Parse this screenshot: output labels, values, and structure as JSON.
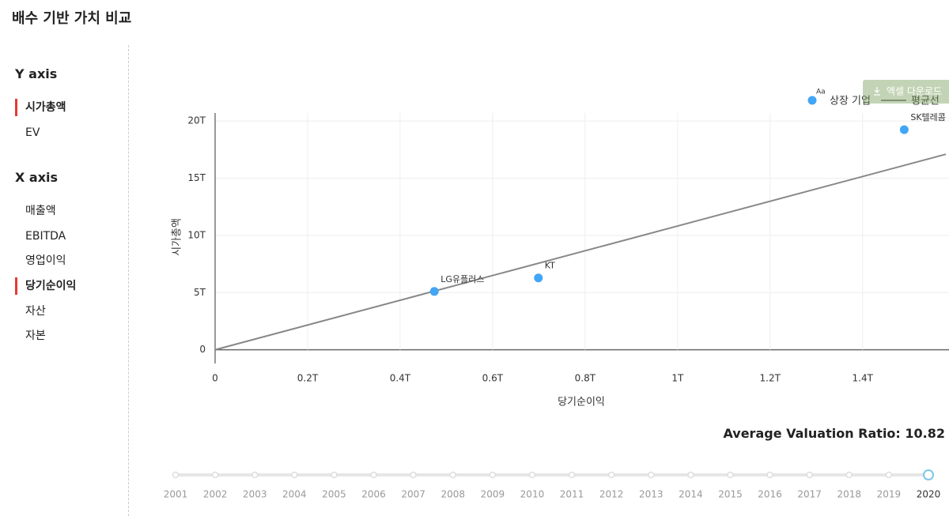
{
  "header": {
    "title": "배수 기반 가치 비교"
  },
  "sidebar": {
    "y_axis": {
      "title": "Y axis",
      "items": [
        "시가총액",
        "EV"
      ],
      "selected_index": 0
    },
    "x_axis": {
      "title": "X axis",
      "items": [
        "매출액",
        "EBITDA",
        "영업이익",
        "당기순이익",
        "자산",
        "자본"
      ],
      "selected_index": 3
    }
  },
  "export_button": "엑셀 다운로드",
  "chart_data": {
    "type": "scatter",
    "x_label": "당기순이익",
    "y_label": "시가총액",
    "legend_icon_text": "Aa",
    "xlim": [
      0,
      1.58
    ],
    "ylim": [
      -1.2,
      20.7
    ],
    "xticks": [
      0,
      {
        "value": 0.2,
        "label": "0.2T"
      },
      {
        "value": 0.4,
        "label": "0.4T"
      },
      {
        "value": 0.6,
        "label": "0.6T"
      },
      {
        "value": 0.8,
        "label": "0.8T"
      },
      {
        "value": 1,
        "label": "1T"
      },
      {
        "value": 1.2,
        "label": "1.2T"
      },
      {
        "value": 1.4,
        "label": "1.4T"
      }
    ],
    "yticks": [
      0,
      {
        "value": 5,
        "label": "5T"
      },
      {
        "value": 10,
        "label": "10T"
      },
      {
        "value": 15,
        "label": "15T"
      },
      {
        "value": 20,
        "label": "20T"
      }
    ],
    "grid": true,
    "series": [
      {
        "name": "상장 기업",
        "color": "#42a5f5",
        "labels": [
          "LG유플러스",
          "KT",
          "SK텔레콤"
        ],
        "x": [
          0.474,
          0.699,
          1.49
        ],
        "y": [
          5.1,
          6.28,
          19.24
        ]
      },
      {
        "name": "평균선",
        "color": "#888888",
        "ratio": 10.82
      }
    ],
    "ratio_label": "Average Valuation Ratio:"
  },
  "timeline": {
    "years": [
      "2001",
      "2002",
      "2003",
      "2004",
      "2005",
      "2006",
      "2007",
      "2008",
      "2009",
      "2010",
      "2011",
      "2012",
      "2013",
      "2014",
      "2015",
      "2016",
      "2017",
      "2018",
      "2019",
      "2020"
    ],
    "selected_index": 19
  }
}
